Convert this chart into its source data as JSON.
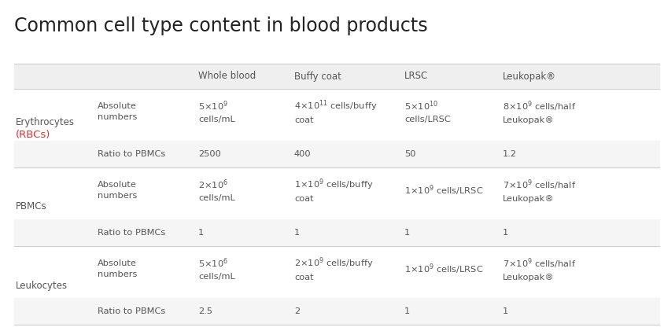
{
  "title": "Common cell type content in blood products",
  "title_fontsize": 17,
  "title_color": "#222222",
  "background_color": "#ffffff",
  "header_bg": "#efefef",
  "stripe_bg": "#f5f5f5",
  "col_headers": [
    "Whole blood",
    "Buffy coat",
    "LRSC",
    "Leukopak®"
  ],
  "text_color": "#555555",
  "red_color": "#e03030",
  "line_color": "#d0d0d0",
  "header_fontsize": 8.5,
  "cell_fontsize": 8.2,
  "group_fontsize": 8.5,
  "subrow_fontsize": 8.2,
  "groups": [
    {
      "name_line1": "Erythrocytes",
      "name_line2": "(RBCs)",
      "abs_values": [
        "5×10$^{9}$\ncells/mL",
        "4×10$^{11}$ cells/buffy\ncoat",
        "5×10$^{10}$\ncells/LRSC",
        "8×10$^{9}$ cells/half\nLeukopak®"
      ],
      "ratio_values": [
        "2500",
        "400",
        "50",
        "1.2"
      ]
    },
    {
      "name_line1": "PBMCs",
      "name_line2": null,
      "abs_values": [
        "2×10$^{6}$\ncells/mL",
        "1×10$^{9}$ cells/buffy\ncoat",
        "1×10$^{9}$ cells/LRSC",
        "7×10$^{9}$ cells/half\nLeukopak®"
      ],
      "ratio_values": [
        "1",
        "1",
        "1",
        "1"
      ]
    },
    {
      "name_line1": "Leukocytes",
      "name_line2": null,
      "abs_values": [
        "5×10$^{6}$\ncells/mL",
        "2×10$^{9}$ cells/buffy\ncoat",
        "1×10$^{9}$ cells/LRSC",
        "7×10$^{9}$ cells/half\nLeukopak®"
      ],
      "ratio_values": [
        "2.5",
        "2",
        "1",
        "1"
      ]
    }
  ]
}
